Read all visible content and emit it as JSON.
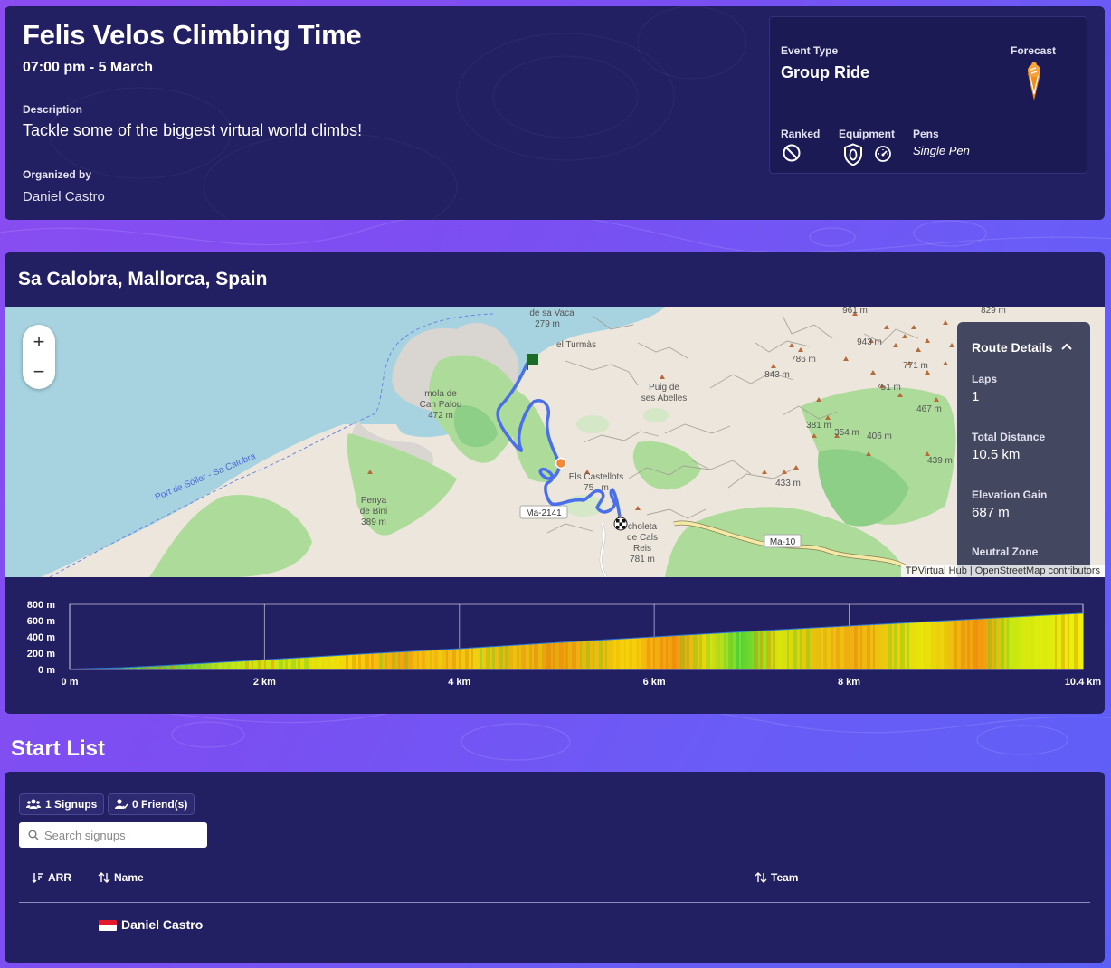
{
  "event": {
    "title": "Felis Velos Climbing Time",
    "datetime": "07:00 pm - 5 March",
    "description_label": "Description",
    "description": "Tackle some of the biggest virtual world climbs!",
    "organizer_label": "Organized by",
    "organizer": "Daniel Castro"
  },
  "info": {
    "event_type_label": "Event Type",
    "event_type": "Group Ride",
    "forecast_label": "Forecast",
    "forecast_icon": "ice-cream-icon",
    "ranked_label": "Ranked",
    "ranked_icon": "not-ranked-icon",
    "equipment_label": "Equipment",
    "equipment_icons": [
      "shield-zero-icon",
      "gauge-icon"
    ],
    "pens_label": "Pens",
    "pens": "Single Pen"
  },
  "route": {
    "location": "Sa Calobra, Mallorca, Spain",
    "zoom_in": "+",
    "zoom_out": "−",
    "details_title": "Route Details",
    "laps_label": "Laps",
    "laps": "1",
    "distance_label": "Total Distance",
    "distance": "10.5 km",
    "gain_label": "Elevation Gain",
    "gain": "687 m",
    "neutral_label": "Neutral Zone",
    "attribution": "TPVirtual Hub | OpenStreetMap contributors",
    "map_labels": {
      "sa_vaca": "de sa Vaca",
      "sa_vaca_h": "279 m",
      "turmas": "el Turmàs",
      "mola": "mola de",
      "mola2": "Can Palou",
      "mola_h": "472 m",
      "puig": "Puig de",
      "puig2": "ses Abelles",
      "castellots": "Els Castellots",
      "castellots_h": "75_ m",
      "ma2141": "Ma-2141",
      "penya": "Penya",
      "penya2": "de Bini",
      "penya_h": "389 m",
      "choleta": "choleta",
      "choleta2": "de Cals",
      "choleta3": "Reis",
      "choleta_h": "781 m",
      "ma10": "Ma-10",
      "port": "Port de Sóller - Sa Calobra",
      "h786": "786 m",
      "h843": "843 m",
      "h961": "961 m",
      "h943": "943 m",
      "h771": "771 m",
      "h751": "751 m",
      "h467": "467 m",
      "h381": "381 m",
      "h354": "354 m",
      "h406": "406 m",
      "h433": "433 m",
      "h439": "439 m",
      "h829": "829 m"
    }
  },
  "chart_data": {
    "type": "area",
    "title": "",
    "xlabel": "",
    "ylabel": "",
    "x_ticks": [
      "0 m",
      "2 km",
      "4 km",
      "6 km",
      "8 km",
      "10.4 km"
    ],
    "y_ticks": [
      "800 m",
      "600 m",
      "400 m",
      "200 m",
      "0 m"
    ],
    "xlim": [
      0,
      10.4
    ],
    "ylim": [
      0,
      800
    ],
    "grid": true,
    "series": [
      {
        "x": [
          0,
          0.5,
          1,
          2,
          3,
          4,
          5,
          6,
          7,
          8,
          9,
          10,
          10.4
        ],
        "y": [
          5,
          20,
          50,
          120,
          190,
          255,
          330,
          400,
          470,
          535,
          600,
          665,
          690
        ]
      }
    ]
  },
  "start_list": {
    "title": "Start List",
    "signups": "1 Signups",
    "friends": "0 Friend(s)",
    "search_placeholder": "Search signups",
    "col_arr": "ARR",
    "col_name": "Name",
    "col_team": "Team",
    "rows": [
      {
        "name": "Daniel Castro",
        "flag": "ID"
      }
    ]
  }
}
